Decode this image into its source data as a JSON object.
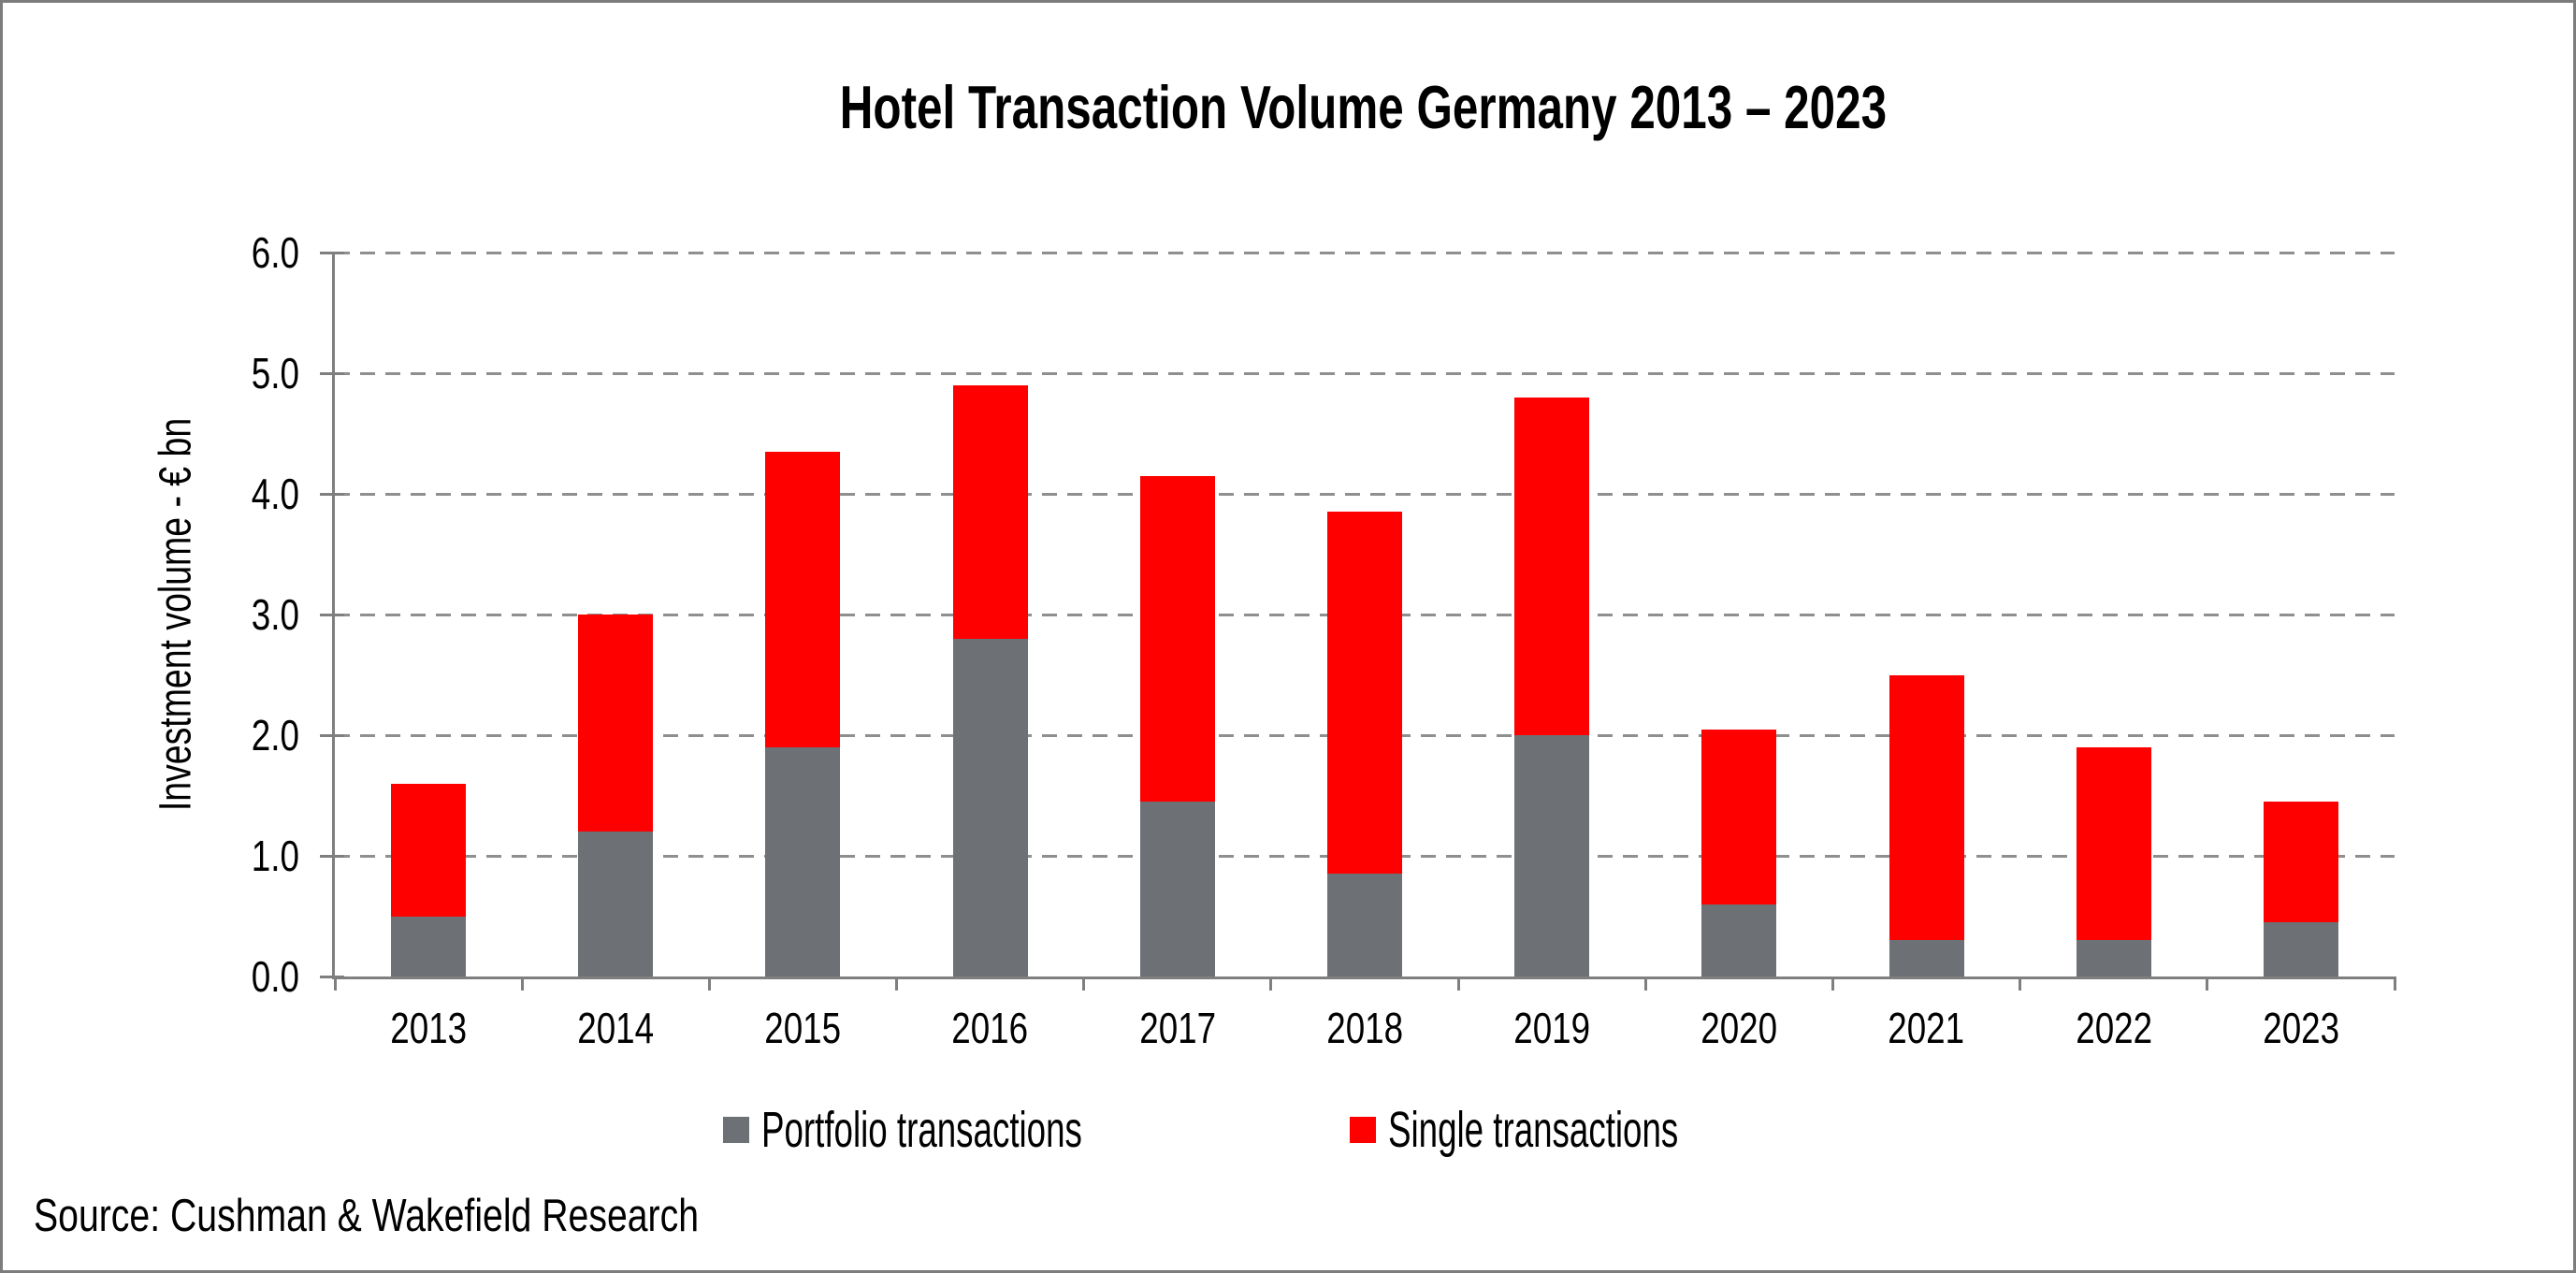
{
  "title": "Hotel Transaction Volume Germany 2013 – 2023",
  "y_axis_title": "Investment volume - € bn",
  "source": "Source: Cushman & Wakefield Research",
  "legend": {
    "items": [
      {
        "label": "Portfolio transactions",
        "color": "#6d7175"
      },
      {
        "label": "Single transactions",
        "color": "#fe0000"
      }
    ]
  },
  "colors": {
    "portfolio_gray": "#6d7175",
    "single_red": "#fe0000",
    "axis_line": "#7f7f7f",
    "gridline": "#8f8f8f",
    "frame_border": "#7c7c7c",
    "text": "#000000",
    "background": "#ffffff"
  },
  "chart_data": {
    "type": "bar",
    "stacked": true,
    "title": "Hotel Transaction Volume Germany 2013 – 2023",
    "xlabel": "",
    "ylabel": "Investment volume - € bn",
    "ylim": [
      0,
      6
    ],
    "ytick_step": 1.0,
    "ytick_labels": [
      "0.0",
      "1.0",
      "2.0",
      "3.0",
      "4.0",
      "5.0",
      "6.0"
    ],
    "grid": "horizontal-dashed",
    "legend_position": "bottom",
    "categories": [
      "2013",
      "2014",
      "2015",
      "2016",
      "2017",
      "2018",
      "2019",
      "2020",
      "2021",
      "2022",
      "2023"
    ],
    "series": [
      {
        "name": "Portfolio transactions",
        "color": "#6d7175",
        "values": [
          0.5,
          1.2,
          1.9,
          2.8,
          1.45,
          0.85,
          2.0,
          0.6,
          0.3,
          0.3,
          0.45
        ]
      },
      {
        "name": "Single transactions",
        "color": "#fe0000",
        "values": [
          1.1,
          1.8,
          2.45,
          2.1,
          2.7,
          3.0,
          2.8,
          1.45,
          2.2,
          1.6,
          1.0
        ]
      }
    ],
    "totals": [
      1.6,
      3.0,
      4.35,
      4.9,
      4.15,
      3.85,
      4.8,
      2.05,
      2.5,
      1.9,
      1.45
    ]
  }
}
